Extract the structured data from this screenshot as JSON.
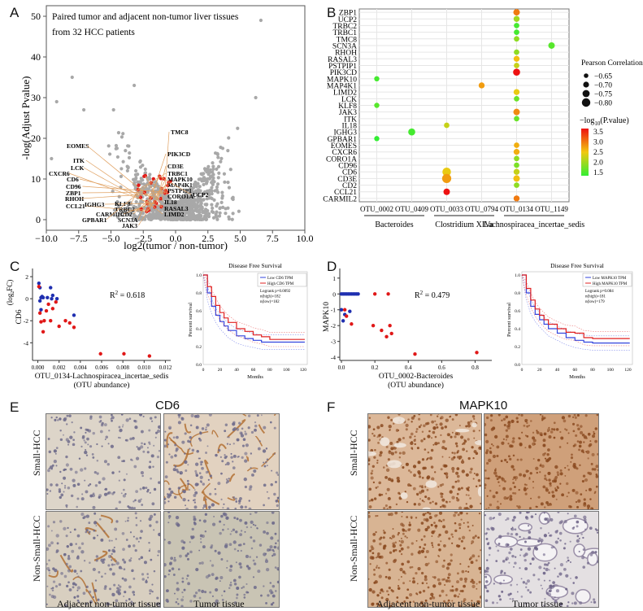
{
  "panels": {
    "A": "A",
    "B": "B",
    "C": "C",
    "D": "D",
    "E": "E",
    "F": "F"
  },
  "volcano": {
    "title_line1": "Paired tumor and adjacent non-tumor liver tissues",
    "title_line2": "from 32 HCC patients",
    "xlabel": "log2(tumor / non-tumor)",
    "ylabel": "-log(Adjust Pvalue)",
    "xticks": [
      "−10.0",
      "−7.5",
      "−5.0",
      "−2.5",
      "0.0",
      "2.5",
      "5.0",
      "7.5",
      "10.0"
    ],
    "yticks": [
      "0",
      "10",
      "20",
      "30",
      "40",
      "50"
    ],
    "genes_left": [
      "EOMES",
      "ITK",
      "LCK",
      "CXCR6",
      "CD6",
      "CD96",
      "ZBP1",
      "RHOH",
      "CCL21",
      "IGHG3",
      "KLF8",
      "TRBC2",
      "CARMIL2",
      "GPBAR1",
      "CD2",
      "SCN3A",
      "JAK3"
    ],
    "genes_right": [
      "TMC8",
      "PIK3CD",
      "CD3E",
      "TRBC1",
      "MAPK10",
      "MAP4K1",
      "PSTPIP1",
      "CORO1A",
      "UCP2",
      "IL18",
      "RASAL3",
      "LIMD2"
    ]
  },
  "chart_data": [
    {
      "type": "scatter",
      "panel": "B",
      "genes": [
        "ZBP1",
        "UCP2",
        "TRBC2",
        "TRBC1",
        "TMC8",
        "SCN3A",
        "RHOH",
        "RASAL3",
        "PSTPIP1",
        "PIK3CD",
        "MAPK10",
        "MAP4K1",
        "LIMD2",
        "LCK",
        "KLF8",
        "JAK3",
        "ITK",
        "IL18",
        "IGHG3",
        "GPBAR1",
        "EOMES",
        "CXCR6",
        "CORO1A",
        "CD96",
        "CD6",
        "CD3E",
        "CD2",
        "CCL21",
        "CARMIL2"
      ],
      "otus": [
        "OTU_0002",
        "OTU_0409",
        "OTU_0033",
        "OTU_0794",
        "OTU_0134",
        "OTU_1149"
      ],
      "taxa": [
        {
          "name": "Bacteroides",
          "otus": [
            "OTU_0002",
            "OTU_0409"
          ]
        },
        {
          "name": "Clostridium XIVa",
          "otus": [
            "OTU_0033",
            "OTU_0794"
          ]
        },
        {
          "name": "Lachnospiracea_incertae_sedis",
          "otus": [
            "OTU_0134",
            "OTU_1149"
          ]
        }
      ],
      "points": [
        {
          "gene": "ZBP1",
          "otu": "OTU_0134",
          "r": -0.7,
          "logp": 3.0
        },
        {
          "gene": "UCP2",
          "otu": "OTU_0134",
          "r": -0.68,
          "logp": 2.1
        },
        {
          "gene": "TRBC2",
          "otu": "OTU_0134",
          "r": -0.66,
          "logp": 1.6
        },
        {
          "gene": "TRBC1",
          "otu": "OTU_0134",
          "r": -0.66,
          "logp": 1.6
        },
        {
          "gene": "TMC8",
          "otu": "OTU_0134",
          "r": -0.66,
          "logp": 2.0
        },
        {
          "gene": "SCN3A",
          "otu": "OTU_1149",
          "r": -0.7,
          "logp": 1.7
        },
        {
          "gene": "RHOH",
          "otu": "OTU_0134",
          "r": -0.66,
          "logp": 2.0
        },
        {
          "gene": "RASAL3",
          "otu": "OTU_0134",
          "r": -0.68,
          "logp": 2.6
        },
        {
          "gene": "PSTPIP1",
          "otu": "OTU_0134",
          "r": -0.66,
          "logp": 2.3
        },
        {
          "gene": "PIK3CD",
          "otu": "OTU_0134",
          "r": -0.72,
          "logp": 3.6
        },
        {
          "gene": "MAPK10",
          "otu": "OTU_0002",
          "r": -0.65,
          "logp": 1.6
        },
        {
          "gene": "MAP4K1",
          "otu": "OTU_0794",
          "r": -0.68,
          "logp": 2.8
        },
        {
          "gene": "LIMD2",
          "otu": "OTU_0134",
          "r": -0.68,
          "logp": 2.5
        },
        {
          "gene": "LCK",
          "otu": "OTU_0134",
          "r": -0.66,
          "logp": 1.8
        },
        {
          "gene": "KLF8",
          "otu": "OTU_0002",
          "r": -0.65,
          "logp": 1.7
        },
        {
          "gene": "JAK3",
          "otu": "OTU_0134",
          "r": -0.7,
          "logp": 2.9
        },
        {
          "gene": "ITK",
          "otu": "OTU_0134",
          "r": -0.66,
          "logp": 1.8
        },
        {
          "gene": "IL18",
          "otu": "OTU_0033",
          "r": -0.66,
          "logp": 2.3
        },
        {
          "gene": "IGHG3",
          "otu": "OTU_0409",
          "r": -0.72,
          "logp": 1.6
        },
        {
          "gene": "GPBAR1",
          "otu": "OTU_0002",
          "r": -0.65,
          "logp": 1.5
        },
        {
          "gene": "EOMES",
          "otu": "OTU_0134",
          "r": -0.66,
          "logp": 2.7
        },
        {
          "gene": "CXCR6",
          "otu": "OTU_0134",
          "r": -0.68,
          "logp": 2.7
        },
        {
          "gene": "CORO1A",
          "otu": "OTU_0134",
          "r": -0.66,
          "logp": 2.0
        },
        {
          "gene": "CD96",
          "otu": "OTU_0134",
          "r": -0.66,
          "logp": 1.9
        },
        {
          "gene": "CD6",
          "otu": "OTU_0033",
          "r": -0.78,
          "logp": 2.5
        },
        {
          "gene": "CD6",
          "otu": "OTU_0134",
          "r": -0.68,
          "logp": 2.3
        },
        {
          "gene": "CD3E",
          "otu": "OTU_0033",
          "r": -0.8,
          "logp": 2.8
        },
        {
          "gene": "CD3E",
          "otu": "OTU_0134",
          "r": -0.7,
          "logp": 2.6
        },
        {
          "gene": "CD2",
          "otu": "OTU_0134",
          "r": -0.66,
          "logp": 2.0
        },
        {
          "gene": "CCL21",
          "otu": "OTU_0033",
          "r": -0.7,
          "logp": 3.6
        },
        {
          "gene": "CARMIL2",
          "otu": "OTU_0134",
          "r": -0.68,
          "logp": 3.0
        }
      ],
      "legend_size_title": "Pearson Correlation",
      "legend_sizes": [
        "−0.65",
        "−0.70",
        "−0.75",
        "−0.80"
      ],
      "legend_color_title": "−log",
      "legend_color_title_sub": "10",
      "legend_color_title_end": "(P.value)",
      "legend_color_ticks": [
        "3.5",
        "3.0",
        "2.5",
        "2.0",
        "1.5"
      ],
      "colors": {
        "low": "#33ee33",
        "mid": "#f2c810",
        "high": "#ee1111"
      }
    },
    {
      "type": "scatter",
      "panel": "C",
      "xlabel_line1": "OTU_0134-Lachnospiracea_incertae_sedis",
      "xlabel_line2": "(OTU abundance)",
      "ylabel": "CD6",
      "ylabel2": "(log",
      "ylabel2_sub": "2",
      "ylabel2_end": "FC)",
      "r2": "R",
      "r2_sup": "2",
      "r2_value": " = 0.618",
      "xticks": [
        "0.000",
        "0.002",
        "0.004",
        "0.006",
        "0.008",
        "0.010",
        "0.012"
      ],
      "yticks": [
        "2",
        "0",
        "-2",
        "-4"
      ],
      "blue": [
        [
          0.0001,
          1.4
        ],
        [
          0.0002,
          1.0
        ],
        [
          0.0003,
          0.1
        ],
        [
          0.0004,
          0.2
        ],
        [
          0.0005,
          0.1
        ],
        [
          0.0009,
          0.1
        ],
        [
          0.0013,
          0.0
        ],
        [
          0.0014,
          0.3
        ],
        [
          0.0012,
          1.0
        ],
        [
          0.0018,
          0.0
        ],
        [
          0.0034,
          -1.5
        ],
        [
          0.0002,
          -0.2
        ],
        [
          0.0003,
          -1.0
        ]
      ],
      "red": [
        [
          0.0001,
          1.1
        ],
        [
          0.0002,
          -1.3
        ],
        [
          0.0003,
          -2.1
        ],
        [
          0.0005,
          -3.0
        ],
        [
          0.0006,
          -2.0
        ],
        [
          0.0008,
          -1.1
        ],
        [
          0.001,
          -0.5
        ],
        [
          0.0012,
          -2.0
        ],
        [
          0.0014,
          -0.9
        ],
        [
          0.0017,
          -0.3
        ],
        [
          0.002,
          -2.5
        ],
        [
          0.0026,
          -2.0
        ],
        [
          0.003,
          -2.2
        ],
        [
          0.0034,
          -2.6
        ],
        [
          0.0059,
          -5.0
        ],
        [
          0.0081,
          -5.0
        ],
        [
          0.0105,
          -5.2
        ]
      ]
    },
    {
      "type": "scatter",
      "panel": "D",
      "xlabel_line1": "OTU_0002-Bacteroides",
      "xlabel_line2": "(OTU abundance)",
      "ylabel": "MAPK10",
      "ylabel2": "(log",
      "ylabel2_sub": "2",
      "ylabel2_end": "FC)",
      "r2": "R",
      "r2_sup": "2",
      "r2_value": " = 0.479",
      "xticks": [
        "0.0",
        "0.2",
        "0.4",
        "0.6",
        "0.8"
      ],
      "yticks": [
        "1",
        "0",
        "-1",
        "-2",
        "-3",
        "-4"
      ],
      "blue": [
        [
          0.0,
          0.0
        ],
        [
          0.01,
          0.0
        ],
        [
          0.02,
          0.0
        ],
        [
          0.03,
          0.0
        ],
        [
          0.04,
          0.0
        ],
        [
          0.05,
          0.0
        ],
        [
          0.06,
          0.0
        ],
        [
          0.07,
          0.0
        ],
        [
          0.08,
          0.0
        ],
        [
          0.09,
          0.0
        ],
        [
          0.1,
          0.0
        ],
        [
          0.0,
          -1.0
        ],
        [
          0.02,
          -1.3
        ],
        [
          0.05,
          -1.1
        ],
        [
          0.01,
          -1.7
        ]
      ],
      "red": [
        [
          0.02,
          -1.0
        ],
        [
          0.03,
          -1.4
        ],
        [
          0.06,
          -1.9
        ],
        [
          0.2,
          0.0
        ],
        [
          0.28,
          0.0
        ],
        [
          0.19,
          -2.0
        ],
        [
          0.24,
          -2.3
        ],
        [
          0.27,
          -2.7
        ],
        [
          0.29,
          -2.0
        ],
        [
          0.3,
          -2.5
        ],
        [
          0.44,
          -3.8
        ],
        [
          0.81,
          -3.7
        ]
      ]
    },
    {
      "type": "line",
      "panel": "C-inset",
      "title": "Disease Free Survival",
      "xlabel": "Months",
      "ylabel": "Percent survival",
      "xticks": [
        "0",
        "20",
        "40",
        "60",
        "80",
        "100",
        "120"
      ],
      "yticks": [
        "0.0",
        "0.2",
        "0.4",
        "0.6",
        "0.8",
        "1.0"
      ],
      "legend": [
        "Low CD6 TPM",
        "High CD6 TPM"
      ],
      "stats": [
        "Logrank p=0.0092",
        "n(high)=182",
        "n(low)=182"
      ],
      "series": [
        {
          "name": "Low CD6 TPM",
          "x": [
            0,
            5,
            10,
            15,
            20,
            25,
            30,
            40,
            50,
            60,
            70,
            80,
            90,
            100,
            110,
            122
          ],
          "y": [
            1.0,
            0.8,
            0.65,
            0.55,
            0.48,
            0.43,
            0.38,
            0.32,
            0.29,
            0.27,
            0.25,
            0.25,
            0.25,
            0.25,
            0.25,
            0.25
          ]
        },
        {
          "name": "High CD6 TPM",
          "x": [
            0,
            5,
            10,
            15,
            20,
            25,
            30,
            40,
            50,
            60,
            70,
            80,
            90,
            100,
            110,
            122
          ],
          "y": [
            1.0,
            0.87,
            0.76,
            0.66,
            0.58,
            0.52,
            0.47,
            0.4,
            0.37,
            0.33,
            0.31,
            0.28,
            0.28,
            0.28,
            0.28,
            0.28
          ]
        }
      ]
    },
    {
      "type": "line",
      "panel": "D-inset",
      "title": "Disease Free Survival",
      "xlabel": "Months",
      "ylabel": "Percent survival",
      "xticks": [
        "0",
        "20",
        "40",
        "60",
        "80",
        "100",
        "120"
      ],
      "yticks": [
        "0.0",
        "0.2",
        "0.4",
        "0.6",
        "0.8",
        "1.0"
      ],
      "legend": [
        "Low MAPK10 TPM",
        "High MAPK10 TPM"
      ],
      "stats": [
        "Logrank p=0.084",
        "n(high)=181",
        "n(low)=179"
      ],
      "series": [
        {
          "name": "Low MAPK10 TPM",
          "x": [
            0,
            5,
            10,
            15,
            20,
            25,
            30,
            40,
            50,
            60,
            70,
            80,
            90,
            100,
            110,
            122
          ],
          "y": [
            1.0,
            0.8,
            0.65,
            0.56,
            0.5,
            0.45,
            0.4,
            0.35,
            0.3,
            0.27,
            0.25,
            0.24,
            0.24,
            0.24,
            0.24,
            0.24
          ]
        },
        {
          "name": "High MAPK10 TPM",
          "x": [
            0,
            5,
            10,
            15,
            20,
            25,
            30,
            40,
            50,
            60,
            70,
            80,
            90,
            100,
            110,
            122
          ],
          "y": [
            1.0,
            0.85,
            0.72,
            0.62,
            0.55,
            0.5,
            0.45,
            0.4,
            0.36,
            0.35,
            0.3,
            0.29,
            0.29,
            0.29,
            0.29,
            0.29
          ]
        }
      ]
    }
  ],
  "ihc_cd6": {
    "title": "CD6",
    "row1": "Small-HCC",
    "row2": "Non-Small-HCC",
    "col1": "Adjacent non-tumor tissue",
    "col2": "Tumor tissue"
  },
  "ihc_mapk10": {
    "title": "MAPK10",
    "row1": "Small-HCC",
    "row2": "Non-Small-HCC",
    "col1": "Adjacent non-tumor tissue",
    "col2": "Tumor tissue"
  }
}
